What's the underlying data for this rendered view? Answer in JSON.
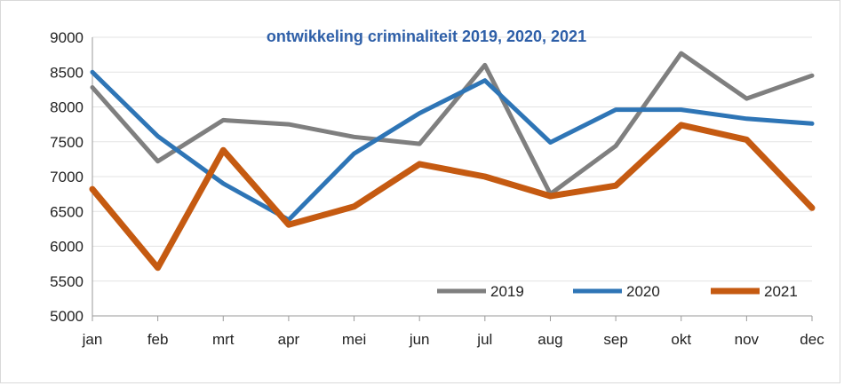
{
  "chart_data": {
    "type": "line",
    "title": "ontwikkeling criminaliteit 2019, 2020, 2021",
    "categories": [
      "jan",
      "feb",
      "mrt",
      "apr",
      "mei",
      "jun",
      "jul",
      "aug",
      "sep",
      "okt",
      "nov",
      "dec"
    ],
    "ylim": [
      5000,
      9000
    ],
    "yticks": [
      5000,
      5500,
      6000,
      6500,
      7000,
      7500,
      8000,
      8500,
      9000
    ],
    "grid": true,
    "legend_position": "bottom-right",
    "series": [
      {
        "name": "2019",
        "color": "#7f7f7f",
        "values": [
          8280,
          7220,
          7810,
          7750,
          7570,
          7470,
          8600,
          6750,
          7440,
          8770,
          8120,
          8450
        ]
      },
      {
        "name": "2020",
        "color": "#2e75b6",
        "values": [
          8500,
          7580,
          6900,
          6380,
          7330,
          7910,
          8380,
          7490,
          7960,
          7960,
          7830,
          7760
        ]
      },
      {
        "name": "2021",
        "color": "#c55a11",
        "values": [
          6820,
          5690,
          7380,
          6310,
          6570,
          7180,
          7000,
          6720,
          6870,
          7740,
          7530,
          6550
        ]
      }
    ]
  }
}
